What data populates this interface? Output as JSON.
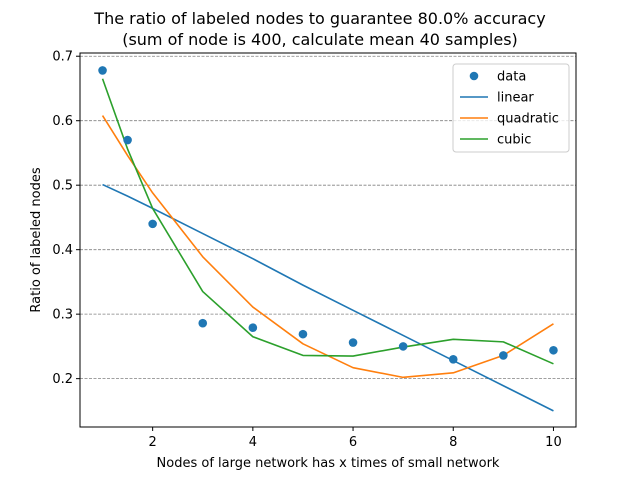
{
  "chart_data": {
    "type": "scatter",
    "title": "The ratio of labeled nodes to guarantee 80.0% accuracy",
    "subtitle": "(sum of node is 400, calculate mean 40 samples)",
    "xlabel": "Nodes of large network has x times of small network",
    "ylabel": "Ratio of labeled nodes",
    "xlim": [
      0.55,
      10.45
    ],
    "ylim": [
      0.125,
      0.705
    ],
    "xticks": [
      2,
      4,
      6,
      8,
      10
    ],
    "yticks": [
      0.2,
      0.3,
      0.4,
      0.5,
      0.6,
      0.7
    ],
    "grid": "y-dashed",
    "legend_position": "top-right",
    "x": [
      1,
      1.5,
      2,
      3,
      4,
      5,
      6,
      7,
      8,
      9,
      10
    ],
    "series": [
      {
        "name": "data",
        "kind": "scatter",
        "color": "#1f77b4",
        "values": [
          0.678,
          0.57,
          0.44,
          0.286,
          0.279,
          0.269,
          0.256,
          0.25,
          0.23,
          0.236,
          0.244
        ]
      },
      {
        "name": "linear",
        "kind": "line",
        "color": "#1f77b4",
        "values": [
          0.501,
          0.483,
          0.464,
          0.425,
          0.386,
          0.345,
          0.306,
          0.267,
          0.228,
          0.189,
          0.15
        ]
      },
      {
        "name": "quadratic",
        "kind": "line",
        "color": "#ff7f0e",
        "values": [
          0.608,
          0.546,
          0.488,
          0.389,
          0.311,
          0.254,
          0.217,
          0.202,
          0.209,
          0.236,
          0.285
        ]
      },
      {
        "name": "cubic",
        "kind": "line",
        "color": "#2ca02c",
        "values": [
          0.665,
          0.556,
          0.464,
          0.335,
          0.265,
          0.236,
          0.235,
          0.249,
          0.261,
          0.257,
          0.223
        ]
      }
    ]
  }
}
